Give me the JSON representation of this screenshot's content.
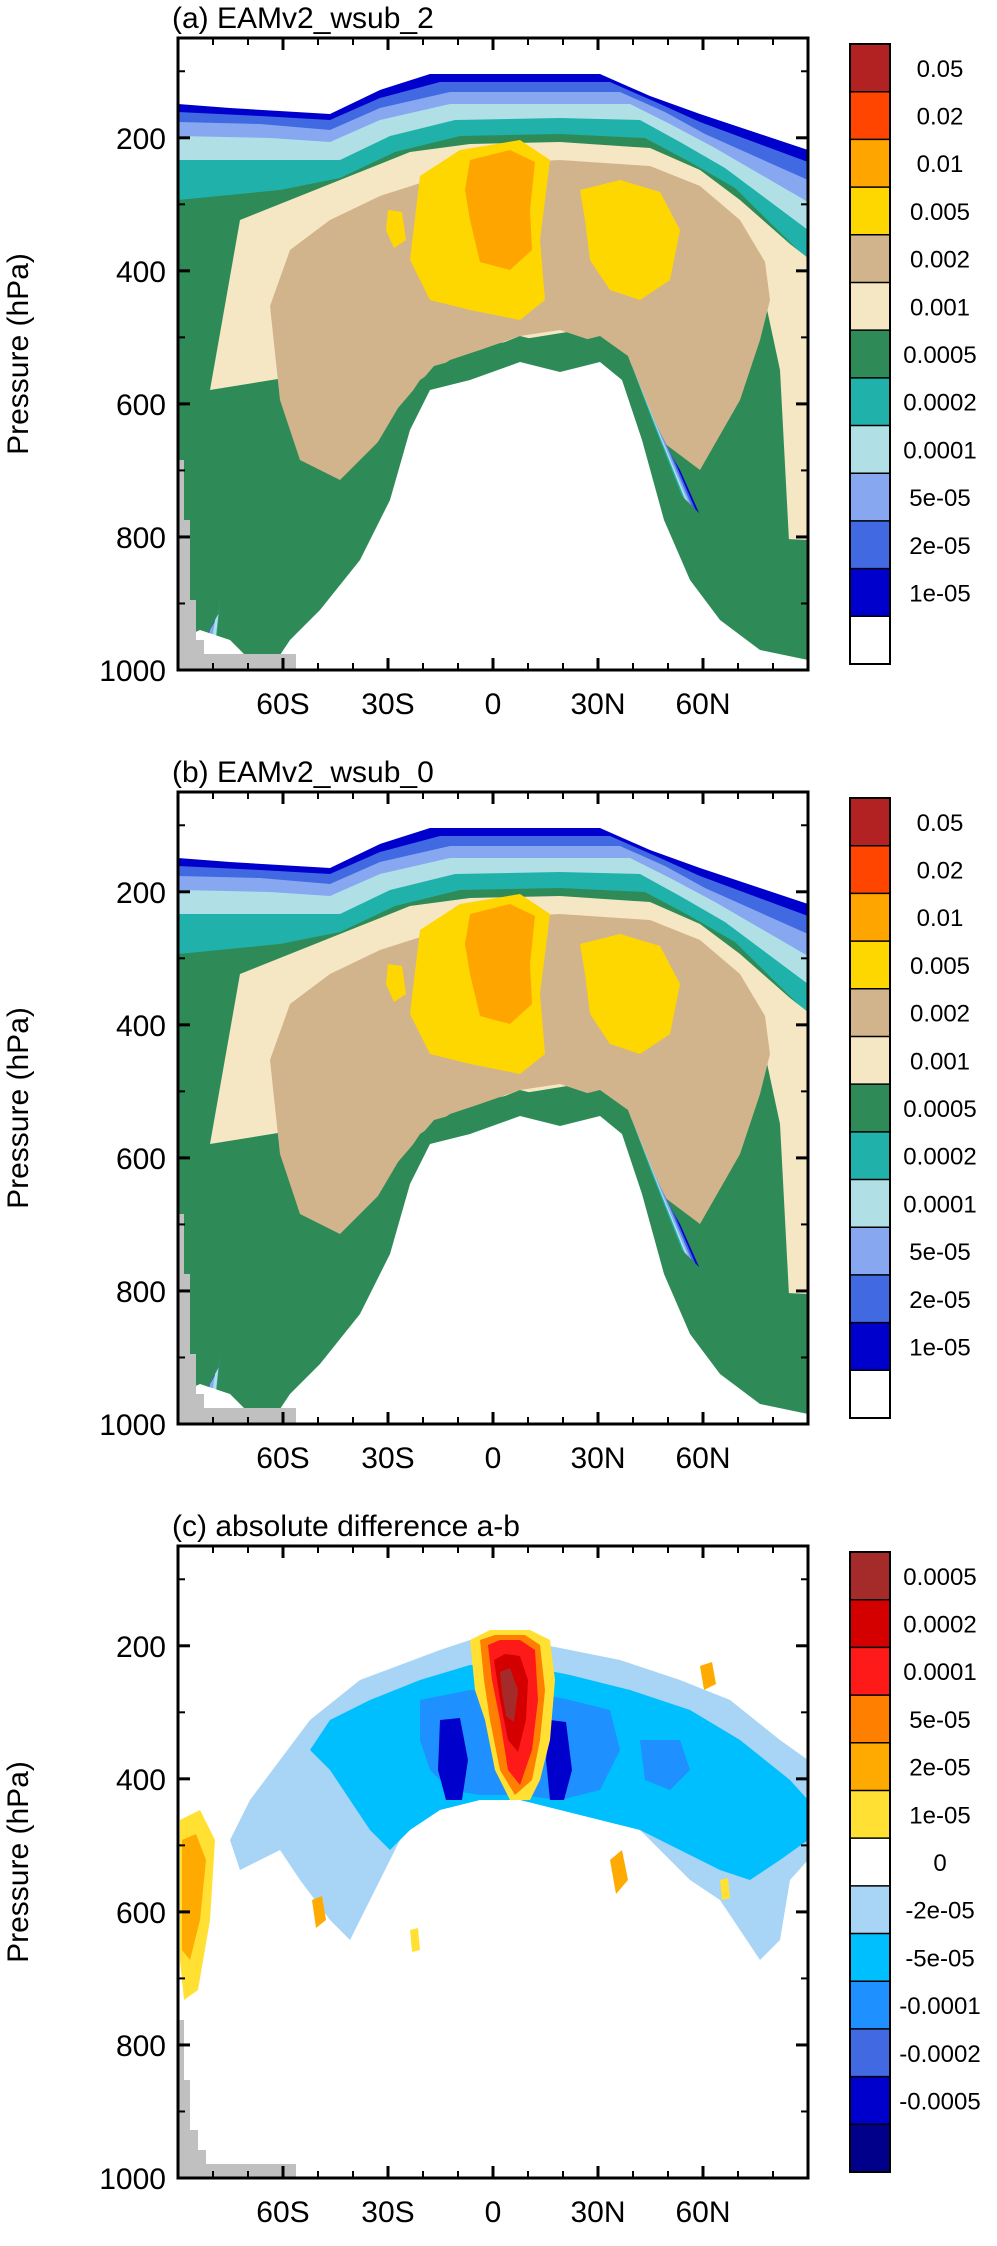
{
  "chart_data": [
    {
      "type": "heatmap",
      "panel_title": "(a) EAMv2_wsub_2",
      "ylabel": "Pressure (hPa)",
      "y_ticks": [
        200,
        400,
        600,
        800,
        1000
      ],
      "x_ticks": [
        "60S",
        "30S",
        "0",
        "30N",
        "60N"
      ],
      "x_tick_values": [
        -60,
        -30,
        0,
        30,
        60
      ],
      "xlim": [
        -90,
        90
      ],
      "ylim": [
        1000,
        50
      ],
      "colorbar": {
        "labels": [
          "0.05",
          "0.02",
          "0.01",
          "0.005",
          "0.002",
          "0.001",
          "0.0005",
          "0.0002",
          "0.0001",
          "5e-05",
          "2e-05",
          "1e-05"
        ],
        "colors": [
          "#b22222",
          "#ff4500",
          "#ffa500",
          "#ffd700",
          "#d2b48c",
          "#f5e6c4",
          "#2e8b57",
          "#20b2aa",
          "#b0e0e6",
          "#87a8f0",
          "#4169e1",
          "#0000cd",
          "#ffffff"
        ]
      }
    },
    {
      "type": "heatmap",
      "panel_title": "(b) EAMv2_wsub_0",
      "ylabel": "Pressure (hPa)",
      "y_ticks": [
        200,
        400,
        600,
        800,
        1000
      ],
      "x_ticks": [
        "60S",
        "30S",
        "0",
        "30N",
        "60N"
      ],
      "x_tick_values": [
        -60,
        -30,
        0,
        30,
        60
      ],
      "xlim": [
        -90,
        90
      ],
      "ylim": [
        1000,
        50
      ],
      "colorbar": {
        "labels": [
          "0.05",
          "0.02",
          "0.01",
          "0.005",
          "0.002",
          "0.001",
          "0.0005",
          "0.0002",
          "0.0001",
          "5e-05",
          "2e-05",
          "1e-05"
        ],
        "colors": [
          "#b22222",
          "#ff4500",
          "#ffa500",
          "#ffd700",
          "#d2b48c",
          "#f5e6c4",
          "#2e8b57",
          "#20b2aa",
          "#b0e0e6",
          "#87a8f0",
          "#4169e1",
          "#0000cd",
          "#ffffff"
        ]
      }
    },
    {
      "type": "heatmap",
      "panel_title": "(c) absolute difference a-b",
      "ylabel": "Pressure (hPa)",
      "y_ticks": [
        200,
        400,
        600,
        800,
        1000
      ],
      "x_ticks": [
        "60S",
        "30S",
        "0",
        "30N",
        "60N"
      ],
      "x_tick_values": [
        -60,
        -30,
        0,
        30,
        60
      ],
      "xlim": [
        -90,
        90
      ],
      "ylim": [
        1000,
        50
      ],
      "colorbar": {
        "labels": [
          "0.0005",
          "0.0002",
          "0.0001",
          "5e-05",
          "2e-05",
          "1e-05",
          "0",
          "-2e-05",
          "-5e-05",
          "-0.0001",
          "-0.0002",
          "-0.0005"
        ],
        "colors": [
          "#a52a2a",
          "#d40000",
          "#ff1a1a",
          "#ff7f00",
          "#ffaa00",
          "#ffe033",
          "#ffffff",
          "#a8d4f5",
          "#00bfff",
          "#1e90ff",
          "#4169e1",
          "#0000cd",
          "#00008b"
        ]
      }
    }
  ]
}
